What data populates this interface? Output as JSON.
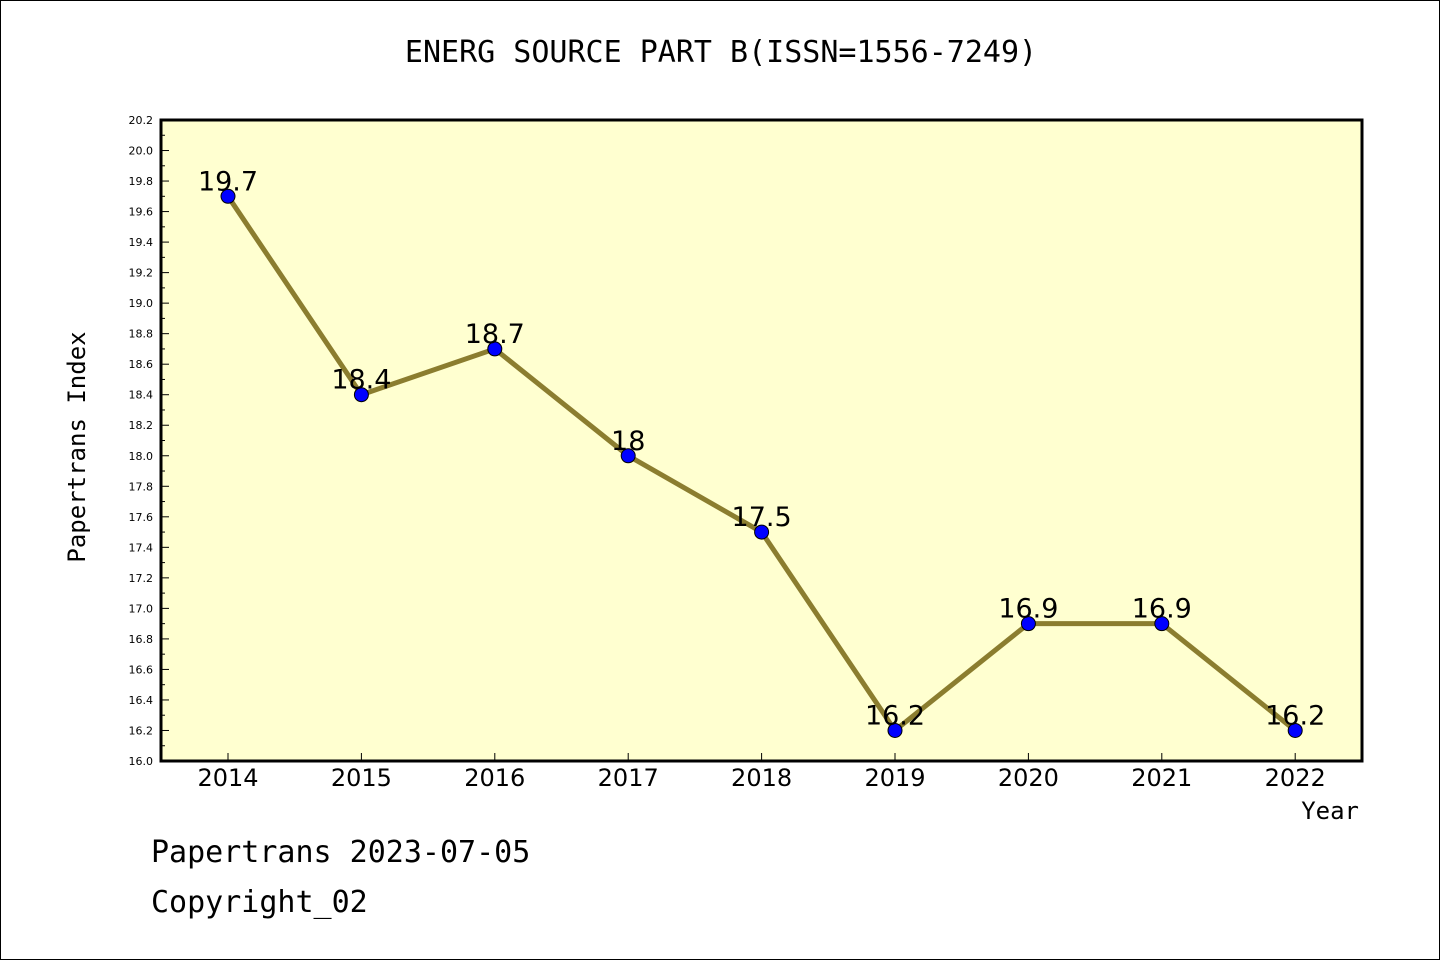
{
  "footer": {
    "date_line": "Papertrans 2023-07-05",
    "copyright": "Copyright_02"
  },
  "colors": {
    "plot_background": "#ffffd0",
    "line": "#8b7d2f",
    "marker": "#0000ff"
  },
  "chart_data": {
    "type": "line",
    "title": "ENERG SOURCE PART B(ISSN=1556-7249)",
    "xlabel": "Year",
    "ylabel": "Papertrans Index",
    "categories": [
      "2014",
      "2015",
      "2016",
      "2017",
      "2018",
      "2019",
      "2020",
      "2021",
      "2022"
    ],
    "series": [
      {
        "values": [
          19.7,
          18.4,
          18.7,
          18.0,
          17.5,
          16.2,
          16.9,
          16.9,
          16.2
        ],
        "data_labels": [
          "19.7",
          "18.4",
          "18.7",
          "18",
          "17.5",
          "16.2",
          "16.9",
          "16.9",
          "16.2"
        ]
      }
    ],
    "ylim": [
      16.0,
      20.2
    ],
    "yticks": [
      "16.0",
      "16.2",
      "16.4",
      "16.6",
      "16.8",
      "17.0",
      "17.2",
      "17.4",
      "17.6",
      "17.8",
      "18.0",
      "18.2",
      "18.4",
      "18.6",
      "18.8",
      "19.0",
      "19.2",
      "19.4",
      "19.6",
      "19.8",
      "20.0",
      "20.2"
    ],
    "grid": false,
    "legend": "none"
  }
}
